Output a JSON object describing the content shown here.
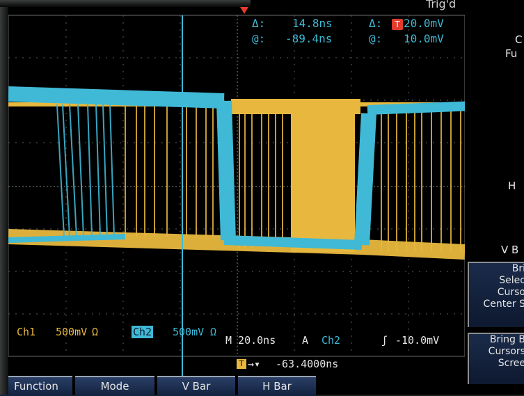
{
  "header": {
    "trigger_title": "Trig'd",
    "cursor_readout": {
      "delta_time_label": "Δ:",
      "delta_time_value": "14.8ns",
      "at_time_label": "@:",
      "at_time_value": "-89.4ns",
      "delta_volt_label": "Δ:",
      "delta_volt_value": "20.0mV",
      "at_volt_label": "@:",
      "at_volt_value": "10.0mV"
    }
  },
  "channels": {
    "ch1_label": "Ch1",
    "ch1_scale": "500mV",
    "ch1_coupling": "Ω",
    "ch2_label": "Ch2",
    "ch2_scale": "500mV",
    "ch2_coupling": "Ω"
  },
  "timebase": {
    "horizontal": "M 20.0ns",
    "trigger_mode": "A",
    "trigger_source": "Ch2",
    "trigger_slope": "ʃ",
    "trigger_level": "-10.0mV",
    "trigger_position": "-63.4000ns"
  },
  "right_panel": {
    "partial_top1": "C",
    "partial_top2": "Fu",
    "h_label": "H",
    "vb_label": "V B",
    "bring_select_btn": "Bri\nSelec\nCurso\nCenter S",
    "bring_cursors_btn": "Bring B\nCursors\nScree"
  },
  "menu": {
    "items": [
      "Function",
      "Mode",
      "V Bar",
      "H Bar"
    ]
  },
  "colors": {
    "ch1": "#e8b83e",
    "ch2": "#3fb9d6",
    "screen_bg": "#000000",
    "menu_bg": "#1a2e52"
  }
}
